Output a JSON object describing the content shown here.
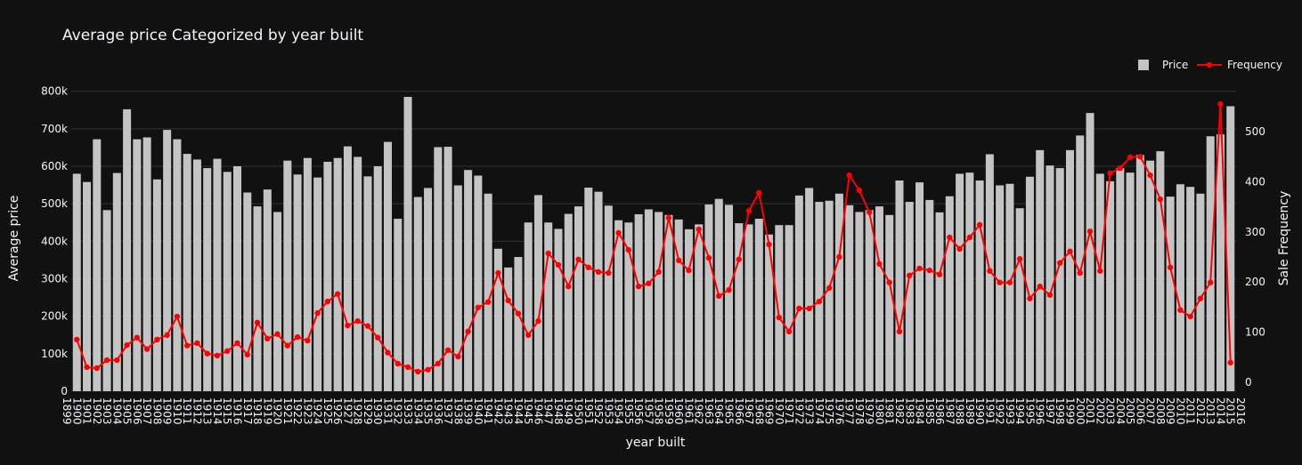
{
  "chart_data": {
    "type": "bar",
    "title": "Average price Categorized by year built",
    "xlabel": "year built",
    "ylabel": "Average price",
    "y2label": "Sale Frequency",
    "legend": "top-right",
    "grid": true,
    "x": [
      1900,
      1901,
      1902,
      1903,
      1904,
      1905,
      1906,
      1907,
      1908,
      1909,
      1910,
      1911,
      1912,
      1913,
      1914,
      1915,
      1916,
      1917,
      1918,
      1919,
      1920,
      1921,
      1922,
      1923,
      1924,
      1925,
      1926,
      1927,
      1928,
      1929,
      1930,
      1931,
      1932,
      1933,
      1934,
      1935,
      1936,
      1937,
      1938,
      1939,
      1940,
      1941,
      1942,
      1943,
      1944,
      1945,
      1946,
      1947,
      1948,
      1949,
      1950,
      1951,
      1952,
      1953,
      1954,
      1955,
      1956,
      1957,
      1958,
      1959,
      1960,
      1961,
      1962,
      1963,
      1964,
      1965,
      1966,
      1967,
      1968,
      1969,
      1970,
      1971,
      1972,
      1973,
      1974,
      1975,
      1976,
      1977,
      1978,
      1979,
      1980,
      1981,
      1982,
      1983,
      1984,
      1985,
      1986,
      1987,
      1988,
      1989,
      1990,
      1991,
      1992,
      1993,
      1994,
      1995,
      1996,
      1997,
      1998,
      1999,
      2000,
      2001,
      2002,
      2003,
      2004,
      2005,
      2006,
      2007,
      2008,
      2009,
      2010,
      2011,
      2012,
      2013,
      2014,
      2015
    ],
    "series": [
      {
        "name": "Price",
        "type": "bar",
        "color": "#c4c4c4",
        "values": [
          580000,
          558000,
          672000,
          483000,
          582000,
          752000,
          672000,
          677000,
          565000,
          697000,
          672000,
          633000,
          618000,
          595000,
          620000,
          585000,
          600000,
          530000,
          493000,
          538000,
          478000,
          615000,
          578000,
          622000,
          570000,
          612000,
          622000,
          653000,
          625000,
          573000,
          600000,
          665000,
          460000,
          785000,
          518000,
          542000,
          651000,
          652000,
          549000,
          590000,
          575000,
          527000,
          380000,
          330000,
          358000,
          450000,
          523000,
          450000,
          433000,
          473000,
          493000,
          543000,
          532000,
          495000,
          456000,
          450000,
          472000,
          485000,
          478000,
          470000,
          458000,
          432000,
          445000,
          498000,
          513000,
          497000,
          448000,
          445000,
          460000,
          418000,
          443000,
          443000,
          522000,
          542000,
          505000,
          508000,
          527000,
          496000,
          478000,
          483000,
          493000,
          470000,
          562000,
          505000,
          557000,
          510000,
          477000,
          520000,
          580000,
          583000,
          562000,
          632000,
          549000,
          553000,
          488000,
          572000,
          643000,
          602000,
          595000,
          643000,
          682000,
          742000,
          580000,
          560000,
          595000,
          583000,
          630000,
          615000,
          640000,
          519000,
          552000,
          545000,
          527000,
          680000,
          685000,
          760000
        ]
      },
      {
        "name": "Frequency",
        "type": "line",
        "axis": "y2",
        "color": "#ff0000",
        "values": [
          85,
          30,
          28,
          44,
          44,
          74,
          89,
          66,
          85,
          94,
          131,
          73,
          78,
          57,
          53,
          62,
          78,
          55,
          119,
          87,
          96,
          73,
          90,
          83,
          138,
          161,
          176,
          113,
          122,
          112,
          89,
          59,
          37,
          30,
          21,
          25,
          37,
          64,
          51,
          101,
          149,
          160,
          218,
          163,
          137,
          94,
          122,
          257,
          234,
          191,
          245,
          229,
          220,
          218,
          298,
          264,
          191,
          197,
          220,
          328,
          243,
          223,
          305,
          248,
          172,
          184,
          245,
          342,
          378,
          275,
          129,
          101,
          147,
          147,
          161,
          188,
          250,
          413,
          383,
          339,
          236,
          199,
          101,
          213,
          227,
          223,
          215,
          289,
          266,
          289,
          314,
          222,
          199,
          199,
          246,
          167,
          191,
          174,
          238,
          261,
          218,
          301,
          222,
          417,
          427,
          449,
          450,
          413,
          365,
          229,
          144,
          131,
          167,
          199,
          555,
          39
        ]
      }
    ],
    "xlim": [
      1899,
      2016
    ],
    "xticks": [
      1899,
      1900,
      1901,
      1902,
      1903,
      1904,
      1905,
      1906,
      1907,
      1908,
      1909,
      1910,
      1911,
      1912,
      1913,
      1914,
      1915,
      1916,
      1917,
      1918,
      1919,
      1920,
      1921,
      1922,
      1923,
      1924,
      1925,
      1926,
      1927,
      1928,
      1929,
      1930,
      1931,
      1932,
      1933,
      1934,
      1935,
      1936,
      1937,
      1938,
      1939,
      1940,
      1941,
      1942,
      1943,
      1944,
      1945,
      1946,
      1947,
      1948,
      1949,
      1950,
      1951,
      1952,
      1953,
      1954,
      1955,
      1956,
      1957,
      1958,
      1959,
      1960,
      1961,
      1962,
      1963,
      1964,
      1965,
      1966,
      1967,
      1968,
      1969,
      1970,
      1971,
      1972,
      1973,
      1974,
      1975,
      1976,
      1977,
      1978,
      1979,
      1980,
      1981,
      1982,
      1983,
      1984,
      1985,
      1986,
      1987,
      1988,
      1989,
      1990,
      1991,
      1992,
      1993,
      1994,
      1995,
      1996,
      1997,
      1998,
      1999,
      2000,
      2001,
      2002,
      2003,
      2004,
      2005,
      2006,
      2007,
      2008,
      2009,
      2010,
      2011,
      2012,
      2013,
      2014,
      2015,
      2016
    ],
    "ylim": [
      0,
      830000
    ],
    "yticks": [
      0,
      {
        "value": 100000,
        "label": "100k"
      },
      {
        "value": 200000,
        "label": "200k"
      },
      {
        "value": 300000,
        "label": "300k"
      },
      {
        "value": 400000,
        "label": "400k"
      },
      {
        "value": 500000,
        "label": "500k"
      },
      {
        "value": 600000,
        "label": "600k"
      },
      {
        "value": 700000,
        "label": "700k"
      },
      {
        "value": 800000,
        "label": "800k"
      }
    ],
    "y2lim": [
      -18,
      603
    ],
    "y2ticks": [
      0,
      100,
      200,
      300,
      400,
      500
    ]
  }
}
